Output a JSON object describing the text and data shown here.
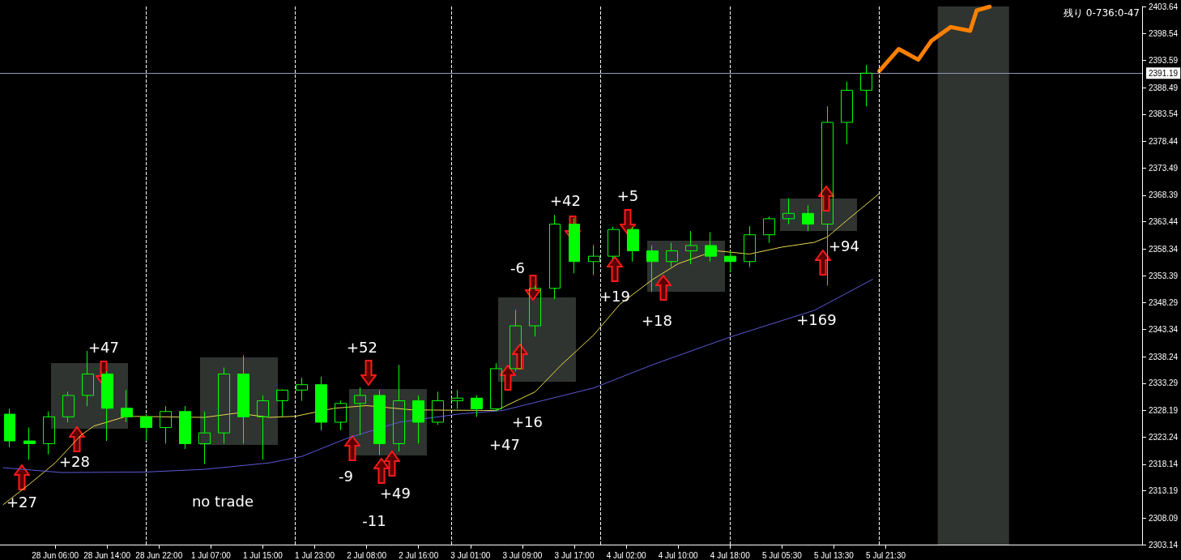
{
  "chart_data": {
    "type": "candlestick",
    "color": "#00ff00",
    "marker": "none",
    "ylim": [
      2303.14,
      2403.64
    ],
    "yticks": [
      2303.14,
      2308.09,
      2313.19,
      2318.14,
      2323.24,
      2328.19,
      2333.29,
      2338.24,
      2343.34,
      2348.29,
      2353.39,
      2358.34,
      2363.44,
      2368.39,
      2373.49,
      2378.44,
      2383.54,
      2388.49,
      2393.59,
      2398.54,
      2403.64
    ],
    "categories": [
      null,
      null,
      null,
      null,
      null,
      null,
      null,
      null,
      "28 Jun 06:00",
      null,
      null,
      null,
      null,
      null,
      null,
      null,
      "28 Jun 14:00",
      null,
      null,
      null,
      null,
      null,
      null,
      null,
      "28 Jun 22:00",
      null,
      null,
      null,
      null,
      null,
      null,
      null,
      "1 Jul 07:00",
      null,
      null,
      null,
      null,
      null,
      null,
      null,
      "1 Jul 15:00",
      null,
      null,
      null,
      null,
      null,
      null,
      null,
      "1 Jul 23:00",
      null,
      null,
      null,
      null,
      null,
      null,
      null,
      "2 Jul 08:00",
      null,
      null,
      null,
      null,
      null,
      null,
      null,
      "2 Jul 16:00",
      null,
      null,
      null,
      null,
      null,
      null,
      null,
      "3 Jul 01:00",
      null,
      null,
      null,
      null,
      null,
      null,
      null,
      "3 Jul 09:00",
      null,
      null,
      null,
      null,
      null,
      null,
      null,
      "3 Jul 17:00",
      null,
      null,
      null,
      null,
      null,
      null,
      null,
      "4 Jul 02:00",
      null,
      null,
      null,
      null,
      null,
      null,
      null,
      "4 Jul 10:00",
      null,
      null,
      null,
      null,
      null,
      null,
      null,
      "4 Jul 18:00",
      null,
      null,
      null,
      null,
      null,
      null,
      null,
      "5 Jul 05:30",
      null,
      null,
      null,
      null,
      null,
      null,
      null,
      "5 Jul 13:30",
      null,
      null,
      null,
      null,
      null,
      null,
      null,
      "5 Jul 21:30",
      null,
      null,
      null,
      null,
      null,
      null,
      null,
      null,
      null,
      null,
      null,
      null,
      null,
      null,
      null,
      null,
      null,
      null,
      null,
      null,
      null,
      null,
      null,
      null,
      null,
      null,
      null,
      null,
      null,
      null,
      null,
      null,
      null,
      null,
      null,
      null,
      null,
      null,
      null
    ],
    "ohlc": [
      null,
      [
        2327.5,
        2328.5,
        2321.3,
        2322.5
      ],
      null,
      null,
      [
        2322.5,
        2325,
        2319,
        2322
      ],
      null,
      null,
      [
        2322,
        2328,
        2320,
        2327
      ],
      null,
      null,
      [
        2327,
        2331.7,
        2326,
        2331
      ],
      null,
      null,
      [
        2331,
        2339.3,
        2329,
        2335
      ],
      null,
      null,
      [
        2335,
        2335.5,
        2322.5,
        2328.6
      ],
      null,
      null,
      [
        2328.6,
        2332,
        2326,
        2327
      ],
      null,
      null,
      [
        2327,
        2327.5,
        2322.5,
        2325
      ],
      null,
      null,
      [
        2325,
        2329,
        2322,
        2328
      ],
      null,
      null,
      [
        2328,
        2329,
        2321,
        2322
      ],
      null,
      null,
      [
        2322,
        2328,
        2318.2,
        2324
      ],
      null,
      null,
      [
        2324,
        2336.2,
        2322,
        2335
      ],
      null,
      null,
      [
        2335,
        2338.5,
        2322,
        2327
      ],
      null,
      null,
      [
        2327,
        2331,
        2319,
        2330
      ],
      null,
      null,
      [
        2330,
        2332.1,
        2327,
        2332
      ],
      null,
      null,
      [
        2332,
        2334.3,
        2330,
        2333
      ],
      null,
      null,
      [
        2333,
        2334.5,
        2324.5,
        2326
      ],
      null,
      null,
      [
        2326,
        2330,
        2324.5,
        2329.5
      ],
      null,
      null,
      [
        2329.5,
        2332.5,
        2323.6,
        2331
      ],
      null,
      null,
      [
        2331,
        2332,
        2319.9,
        2322
      ],
      null,
      null,
      [
        2322,
        2336.7,
        2320.5,
        2330
      ],
      null,
      null,
      [
        2330,
        2331,
        2322,
        2326
      ],
      null,
      null,
      [
        2326,
        2331.7,
        2325.5,
        2330
      ],
      null,
      null,
      [
        2330,
        2332,
        2328.5,
        2330.5
      ],
      null,
      null,
      [
        2330.5,
        2331,
        2327,
        2328.5
      ],
      null,
      null,
      [
        2328.5,
        2337,
        2328,
        2336
      ],
      null,
      null,
      [
        2336,
        2347,
        2335.5,
        2344
      ],
      null,
      null,
      [
        2344,
        2351.5,
        2342,
        2351
      ],
      null,
      null,
      [
        2351,
        2364.7,
        2349,
        2363
      ],
      null,
      null,
      [
        2363,
        2364.1,
        2353.8,
        2356
      ],
      null,
      null,
      [
        2356,
        2359.1,
        2353.5,
        2357
      ],
      null,
      null,
      [
        2357,
        2362.5,
        2356.5,
        2362
      ],
      null,
      null,
      [
        2362,
        2362.5,
        2356,
        2358
      ],
      null,
      null,
      [
        2358,
        2359,
        2350.4,
        2356
      ],
      null,
      null,
      [
        2356,
        2359.5,
        2355,
        2358
      ],
      null,
      null,
      [
        2358,
        2361.7,
        2355.5,
        2359
      ],
      null,
      null,
      [
        2359,
        2361.5,
        2356,
        2357
      ],
      null,
      null,
      [
        2357,
        2358,
        2354.1,
        2356
      ],
      null,
      null,
      [
        2356,
        2362.6,
        2355,
        2361
      ],
      null,
      null,
      [
        2361,
        2364.4,
        2359.5,
        2364
      ],
      null,
      null,
      [
        2364,
        2367.8,
        2363,
        2365
      ],
      null,
      null,
      [
        2365,
        2366.5,
        2361.7,
        2363
      ],
      null,
      null,
      [
        2363,
        2385,
        2351.5,
        2382
      ],
      null,
      null,
      [
        2382,
        2389.6,
        2377.9,
        2388
      ],
      null,
      null,
      [
        2388,
        2392.7,
        2385,
        2391.19
      ],
      null,
      null,
      null,
      null,
      null,
      null,
      null,
      null,
      null,
      null,
      null,
      null,
      null,
      null,
      null,
      null,
      null,
      null,
      null,
      null,
      null,
      null,
      null,
      null,
      null,
      null,
      null,
      null,
      null,
      null,
      null,
      null,
      null,
      null,
      null,
      null,
      null,
      null,
      null,
      null,
      null,
      null
    ],
    "series": [
      {
        "type": "line",
        "color": "#e8d84a",
        "values": [
          2310.6,
          null,
          null,
          null,
          2314.4,
          null,
          null,
          null,
          2318.4,
          null,
          null,
          null,
          2323.6,
          null,
          2325.3,
          null,
          null,
          null,
          null,
          2327.1,
          null,
          null,
          null,
          null,
          null,
          null,
          null,
          null,
          null,
          null,
          null,
          2326.9,
          null,
          null,
          null,
          null,
          2327.7,
          null,
          null,
          null,
          null,
          2326.9,
          null,
          null,
          null,
          2327.1,
          null,
          null,
          null,
          null,
          null,
          2328.6,
          null,
          null,
          null,
          null,
          2329.1,
          null,
          null,
          null,
          null,
          null,
          null,
          2328.3,
          null,
          null,
          null,
          null,
          null,
          null,
          null,
          null,
          null,
          null,
          2328.2,
          null,
          2328.2,
          null,
          null,
          null,
          null,
          null,
          2331.7,
          null,
          null,
          null,
          2336.7,
          null,
          null,
          null,
          null,
          2342.3,
          null,
          null,
          null,
          2348,
          null,
          null,
          null,
          null,
          2352.6,
          null,
          null,
          null,
          2355.6,
          null,
          null,
          null,
          2357.3,
          null,
          2358,
          null,
          null,
          null,
          null,
          2357.4,
          null,
          null,
          null,
          null,
          2358.7,
          null,
          null,
          null,
          null,
          2359.6,
          null,
          2360.6,
          null,
          null,
          2363.7,
          null,
          null,
          null,
          null,
          2368.7,
          null,
          null,
          null,
          null,
          null,
          null,
          null,
          null,
          null,
          null,
          null,
          null,
          null,
          null,
          null,
          null,
          null,
          null,
          null,
          null,
          null,
          null,
          null,
          null,
          null,
          null,
          null,
          null,
          null,
          null,
          null,
          null,
          null,
          null,
          null,
          null,
          null,
          null,
          null,
          null
        ]
      },
      {
        "type": "line",
        "color": "#5a5ad8",
        "values": [
          2317.5,
          null,
          null,
          null,
          null,
          null,
          null,
          null,
          null,
          2316.6,
          null,
          null,
          null,
          null,
          null,
          null,
          null,
          null,
          null,
          null,
          null,
          null,
          2316.7,
          null,
          null,
          null,
          null,
          null,
          null,
          null,
          null,
          2317.2,
          null,
          null,
          null,
          null,
          null,
          null,
          null,
          null,
          null,
          2318.4,
          null,
          null,
          null,
          null,
          2319.6,
          null,
          null,
          null,
          null,
          null,
          null,
          2323,
          null,
          null,
          null,
          null,
          null,
          null,
          null,
          2326,
          null,
          null,
          null,
          null,
          null,
          null,
          null,
          null,
          2327.5,
          null,
          null,
          null,
          null,
          null,
          null,
          2328.2,
          null,
          null,
          null,
          null,
          2329.7,
          null,
          null,
          null,
          null,
          null,
          null,
          null,
          null,
          2332.4,
          null,
          null,
          null,
          null,
          null,
          null,
          null,
          null,
          2336.7,
          null,
          null,
          null,
          null,
          null,
          null,
          null,
          null,
          null,
          null,
          null,
          2341.9,
          null,
          null,
          null,
          null,
          null,
          null,
          null,
          null,
          null,
          null,
          null,
          null,
          2346.9,
          null,
          null,
          null,
          null,
          null,
          null,
          null,
          null,
          2352.7,
          null,
          null,
          null,
          null,
          null,
          null,
          null,
          null,
          null,
          null,
          null,
          null,
          null,
          null,
          null,
          null,
          null,
          null,
          null,
          null,
          null,
          null,
          null,
          null,
          null,
          null,
          null,
          null,
          null,
          null,
          null,
          null,
          null,
          null,
          null,
          null,
          null,
          null,
          null,
          null,
          null
        ]
      },
      {
        "type": "line",
        "color": "#ff8000",
        "values": [
          null,
          null,
          null,
          null,
          null,
          null,
          null,
          null,
          null,
          null,
          null,
          null,
          null,
          null,
          null,
          null,
          null,
          null,
          null,
          null,
          null,
          null,
          null,
          null,
          null,
          null,
          null,
          null,
          null,
          null,
          null,
          null,
          null,
          null,
          null,
          null,
          null,
          null,
          null,
          null,
          null,
          null,
          null,
          null,
          null,
          null,
          null,
          null,
          null,
          null,
          null,
          null,
          null,
          null,
          null,
          null,
          null,
          null,
          null,
          null,
          null,
          null,
          null,
          null,
          null,
          null,
          null,
          null,
          null,
          null,
          null,
          null,
          null,
          null,
          null,
          null,
          null,
          null,
          null,
          null,
          null,
          null,
          null,
          null,
          null,
          null,
          null,
          null,
          null,
          null,
          null,
          null,
          null,
          null,
          null,
          null,
          null,
          null,
          null,
          null,
          null,
          null,
          null,
          null,
          null,
          null,
          null,
          null,
          null,
          null,
          null,
          null,
          null,
          null,
          null,
          null,
          null,
          null,
          null,
          null,
          null,
          null,
          null,
          null,
          null,
          null,
          null,
          null,
          null,
          null,
          null,
          null,
          null,
          null,
          null,
          2391.6,
          null,
          null,
          2395.7,
          null,
          null,
          2393.7,
          null,
          2397.2,
          null,
          null,
          2399.8,
          null,
          null,
          2399.1,
          2402.9,
          null,
          2403.6,
          null,
          null,
          null,
          null,
          null,
          null,
          null,
          null,
          null,
          null,
          null,
          null,
          null,
          null,
          null,
          null,
          null,
          null,
          null,
          null,
          null,
          null,
          null
        ]
      }
    ],
    "ref_lines": [
      {
        "axis": "y",
        "value": 2391.19,
        "label": "2391.19",
        "color": "#8c9bb0"
      }
    ],
    "annotations": [
      "+27",
      "+28",
      "+47",
      "no trade",
      "+52",
      "-9",
      "+49",
      "-11",
      "+47",
      "+16",
      "-6",
      "+42",
      "+5",
      "+19",
      "+18",
      "+94",
      "+169",
      "残り 0-736:0-47"
    ]
  }
}
